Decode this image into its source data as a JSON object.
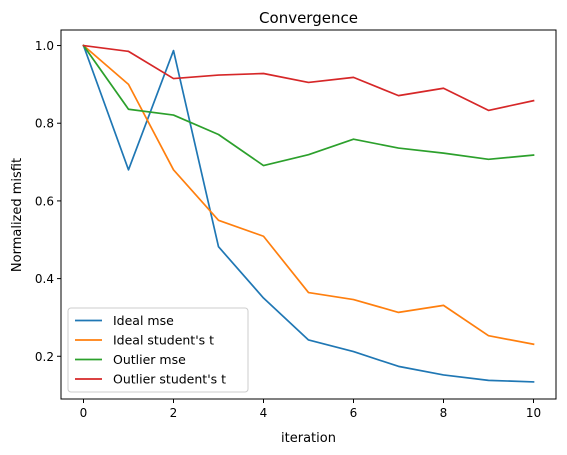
{
  "chart_data": {
    "type": "line",
    "title": "Convergence",
    "xlabel": "iteration",
    "ylabel": "Normalized misfit",
    "xlim": [
      -0.5,
      10.5
    ],
    "ylim": [
      0.09,
      1.04
    ],
    "xticks": [
      0,
      2,
      4,
      6,
      8,
      10
    ],
    "yticks": [
      0.2,
      0.4,
      0.6,
      0.8,
      1.0
    ],
    "ytick_labels": [
      "0.2",
      "0.4",
      "0.6",
      "0.8",
      "1.0"
    ],
    "grid": false,
    "legend_position": "lower-left",
    "x": [
      0,
      1,
      2,
      3,
      4,
      5,
      6,
      7,
      8,
      9,
      10
    ],
    "series": [
      {
        "name": "Ideal mse",
        "color": "#1f77b4",
        "values": [
          1.0,
          0.68,
          0.987,
          0.482,
          0.35,
          0.242,
          0.212,
          0.174,
          0.152,
          0.138,
          0.134
        ]
      },
      {
        "name": "Ideal student's t",
        "color": "#ff7f0e",
        "values": [
          1.0,
          0.9,
          0.68,
          0.55,
          0.509,
          0.364,
          0.346,
          0.313,
          0.331,
          0.253,
          0.231
        ]
      },
      {
        "name": "Outlier mse",
        "color": "#2ca02c",
        "values": [
          1.0,
          0.836,
          0.821,
          0.771,
          0.691,
          0.719,
          0.759,
          0.736,
          0.723,
          0.707,
          0.718
        ]
      },
      {
        "name": "Outlier student's t",
        "color": "#d62728",
        "values": [
          1.0,
          0.985,
          0.915,
          0.924,
          0.928,
          0.905,
          0.918,
          0.871,
          0.89,
          0.833,
          0.858
        ]
      }
    ]
  }
}
